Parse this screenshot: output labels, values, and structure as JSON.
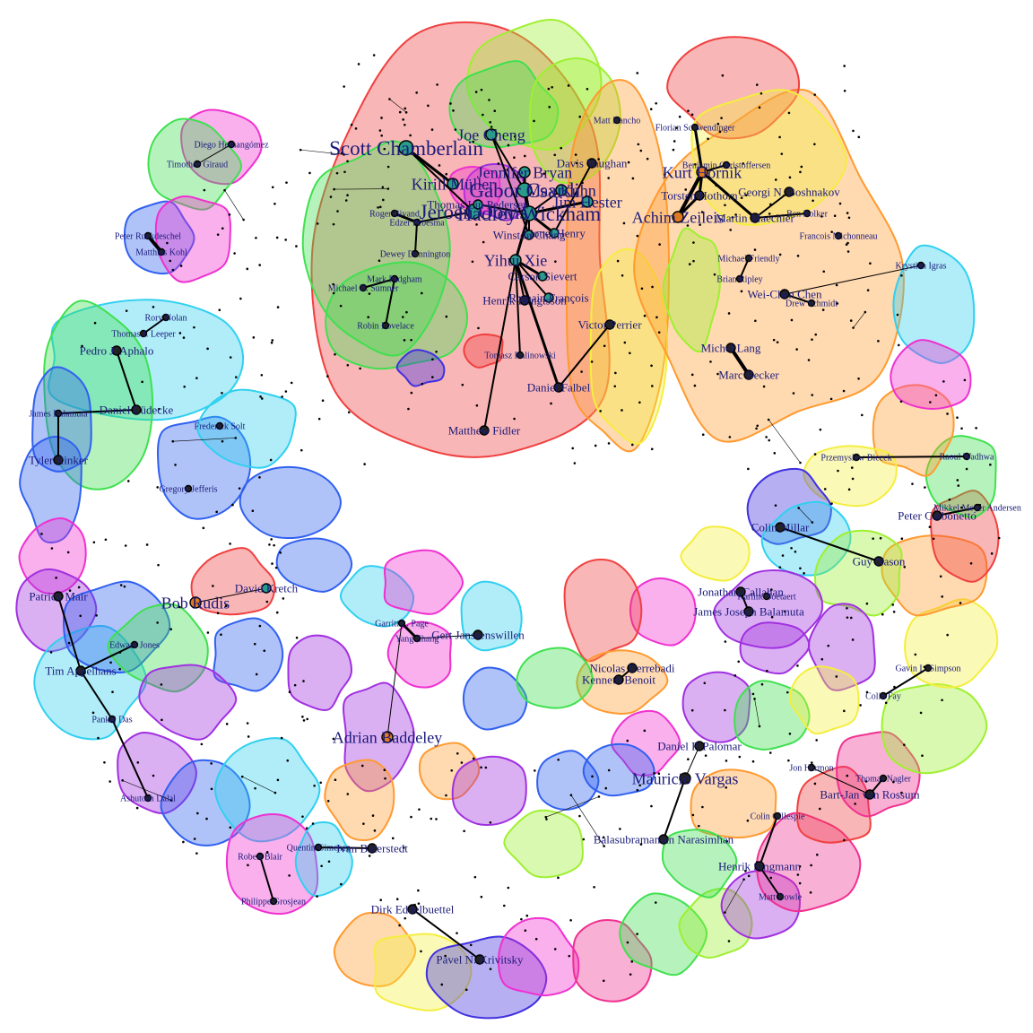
{
  "colors": {
    "red": "#f04040",
    "orange": "#ff9a30",
    "yellow": "#f4ee40",
    "lime": "#9ef030",
    "green": "#40e050",
    "teal": "#30e0c0",
    "cyan": "#30d0f0",
    "blue": "#3060f0",
    "indigo": "#4030e0",
    "violet": "#a030e0",
    "magenta": "#f030d0",
    "pink": "#f03090",
    "hub_teal": "#2a9a8a",
    "hub_orange": "#e07a20"
  },
  "groups": [
    {
      "name": "top-red-cluster",
      "color": "red"
    },
    {
      "name": "top-green-cluster",
      "color": "green"
    },
    {
      "name": "top-lime-cluster",
      "color": "lime"
    },
    {
      "name": "top-orange-cluster",
      "color": "orange"
    },
    {
      "name": "right-orange-cluster",
      "color": "orange"
    },
    {
      "name": "right-yellow-cluster",
      "color": "yellow"
    },
    {
      "name": "right-red-cluster",
      "color": "red"
    }
  ],
  "people": [
    {
      "id": "scott-chamberlain",
      "label": "Scott Chamberlain",
      "size": "xl",
      "hub": "teal"
    },
    {
      "id": "gabor-csardi",
      "label": "Gabor Csardi",
      "size": "xl",
      "hub": "teal"
    },
    {
      "id": "hadley-wickham",
      "label": "Hadley Wickham",
      "size": "xl",
      "hub": "teal"
    },
    {
      "id": "jeroen-ooms",
      "label": "Jeroen Ooms",
      "size": "xl",
      "hub": "teal"
    },
    {
      "id": "yihui-xie",
      "label": "Yihui Xie",
      "size": "l",
      "hub": "teal"
    },
    {
      "id": "jennifer-bryan",
      "label": "Jennifer Bryan",
      "size": "l",
      "hub": "teal"
    },
    {
      "id": "joe-cheng",
      "label": "Joe Cheng",
      "size": "l",
      "hub": "teal"
    },
    {
      "id": "kirill-muller",
      "label": "Kirill Müller",
      "size": "l",
      "hub": "teal"
    },
    {
      "id": "max-kuhn",
      "label": "Max Kuhn",
      "size": "l",
      "hub": "teal"
    },
    {
      "id": "jim-hester",
      "label": "Jim Hester",
      "size": "l",
      "hub": "teal"
    },
    {
      "id": "thomas-lin-pedersen",
      "label": "Thomas Lin Pedersen",
      "size": "m",
      "hub": "teal"
    },
    {
      "id": "winston-chang",
      "label": "Winston Chang",
      "size": "m",
      "hub": "teal"
    },
    {
      "id": "lionel-henry",
      "label": "Lionel Henry",
      "size": "m",
      "hub": "teal"
    },
    {
      "id": "romain-francois",
      "label": "Romain François",
      "size": "m",
      "hub": "teal"
    },
    {
      "id": "carson-sievert",
      "label": "Carson Sievert",
      "size": "m",
      "hub": "teal"
    },
    {
      "id": "davis-vaughan",
      "label": "Davis Vaughan",
      "size": "m",
      "hub": "none"
    },
    {
      "id": "kurt-hornik",
      "label": "Kurt Hornik",
      "size": "l",
      "hub": "orange"
    },
    {
      "id": "achim-zeileis",
      "label": "Achim Zeileis",
      "size": "l",
      "hub": "orange"
    },
    {
      "id": "martin-maechler",
      "label": "Martin Maechler",
      "size": "m",
      "hub": "none"
    },
    {
      "id": "georgi-boshnakov",
      "label": "Georgi N. Boshnakov",
      "size": "m",
      "hub": "none"
    },
    {
      "id": "torsten-hothorn",
      "label": "Torsten Hothorn",
      "size": "m",
      "hub": "none"
    },
    {
      "id": "michel-lang",
      "label": "Michel Lang",
      "size": "m",
      "hub": "none"
    },
    {
      "id": "marc-becker",
      "label": "Marc Becker",
      "size": "m",
      "hub": "none"
    },
    {
      "id": "wei-chen",
      "label": "Wei-Chen Chen",
      "size": "m",
      "hub": "none"
    },
    {
      "id": "drew-schmidt",
      "label": "Drew Schmidt",
      "size": "s",
      "hub": "none"
    },
    {
      "id": "brian-ripley",
      "label": "Brian Ripley",
      "size": "s",
      "hub": "none"
    },
    {
      "id": "victor-perrier",
      "label": "Victor Perrier",
      "size": "m",
      "hub": "none"
    },
    {
      "id": "daniel-falbel",
      "label": "Daniel Falbel",
      "size": "m",
      "hub": "none"
    },
    {
      "id": "matthew-fidler",
      "label": "Matthew Fidler",
      "size": "m",
      "hub": "none"
    },
    {
      "id": "tomasz-kalinowski",
      "label": "Tomasz Kalinowski",
      "size": "s",
      "hub": "none"
    },
    {
      "id": "henrik-bengtsson",
      "label": "Henrik Bengtsson",
      "size": "m",
      "hub": "none"
    },
    {
      "id": "michael-sumner",
      "label": "Michael D. Sumner",
      "size": "s",
      "hub": "none"
    },
    {
      "id": "robin-lovelace",
      "label": "Robin Lovelace",
      "size": "s",
      "hub": "none"
    },
    {
      "id": "roger-bivand",
      "label": "Roger Bivand",
      "size": "s",
      "hub": "none"
    },
    {
      "id": "dewey-dunnington",
      "label": "Dewey Dunnington",
      "size": "s",
      "hub": "none"
    },
    {
      "id": "edzer-pebesma",
      "label": "Edzer Pebesma",
      "size": "s",
      "hub": "none"
    },
    {
      "id": "mark-padgham",
      "label": "Mark Padgham",
      "size": "s",
      "hub": "none"
    },
    {
      "id": "matt-dancho",
      "label": "Matt Dancho",
      "size": "s",
      "hub": "none"
    },
    {
      "id": "florian-schwendinger",
      "label": "Florian Schwendinger",
      "size": "s",
      "hub": "none"
    },
    {
      "id": "benjamin-christoffersen",
      "label": "Benjamin Christoffersen",
      "size": "s",
      "hub": "none"
    },
    {
      "id": "michael-friendly",
      "label": "Michael Friendly",
      "size": "s",
      "hub": "none"
    },
    {
      "id": "ben-bolker",
      "label": "Ben Bolker",
      "size": "s",
      "hub": "none"
    },
    {
      "id": "francois-michonneau",
      "label": "Francois Michonneau",
      "size": "s",
      "hub": "none"
    },
    {
      "id": "diego-hernangomez",
      "label": "Diego Hernangómez",
      "size": "s",
      "hub": "none"
    },
    {
      "id": "timothee-giraud",
      "label": "Timothée Giraud",
      "size": "s",
      "hub": "none"
    },
    {
      "id": "peter-ruckdeschel",
      "label": "Peter Ruckdeschel",
      "size": "s",
      "hub": "none"
    },
    {
      "id": "matthias-kohl",
      "label": "Matthias Kohl",
      "size": "s",
      "hub": "none"
    },
    {
      "id": "rory-nolan",
      "label": "Rory Nolan",
      "size": "s",
      "hub": "none"
    },
    {
      "id": "thomas-leeper",
      "label": "Thomas J. Leeper",
      "size": "s",
      "hub": "none"
    },
    {
      "id": "pedro-aphalo",
      "label": "Pedro J. Aphalo",
      "size": "m",
      "hub": "none"
    },
    {
      "id": "daniel-ludecke",
      "label": "Daniel Lüdecke",
      "size": "m",
      "hub": "none"
    },
    {
      "id": "james-balamuta",
      "label": "James Balamuta",
      "size": "s",
      "hub": "none"
    },
    {
      "id": "tyler-rinker",
      "label": "Tyler Rinker",
      "size": "m",
      "hub": "none"
    },
    {
      "id": "gregor-jefferis",
      "label": "Gregory Jefferis",
      "size": "s",
      "hub": "none"
    },
    {
      "id": "frederick-solt",
      "label": "Frederick Solt",
      "size": "s",
      "hub": "none"
    },
    {
      "id": "bob-rudis",
      "label": "Bob Rudis",
      "size": "l",
      "hub": "orange"
    },
    {
      "id": "david-kretch",
      "label": "David Kretch",
      "size": "m",
      "hub": "teal"
    },
    {
      "id": "patrick-mair",
      "label": "Patrick Mair",
      "size": "m",
      "hub": "none"
    },
    {
      "id": "tim-appelhans",
      "label": "Tim Appelhans",
      "size": "m",
      "hub": "none"
    },
    {
      "id": "edward-jones",
      "label": "Edward Jones",
      "size": "s",
      "hub": "none"
    },
    {
      "id": "pankaj-das",
      "label": "Pankaj Das",
      "size": "s",
      "hub": "none"
    },
    {
      "id": "adrian-baddeley",
      "label": "Adrian Baddeley",
      "size": "l",
      "hub": "orange"
    },
    {
      "id": "gert-janssenswillen",
      "label": "Gert Janssenswillen",
      "size": "m",
      "hub": "none"
    },
    {
      "id": "garrick-page",
      "label": "Garritt L. Page",
      "size": "s",
      "hub": "none"
    },
    {
      "id": "yang-zhang",
      "label": "Yang Zhang",
      "size": "s",
      "hub": "none"
    },
    {
      "id": "quentin-gimenez",
      "label": "Quentin Gimenez",
      "size": "s",
      "hub": "none"
    },
    {
      "id": "ivan-biderstedt",
      "label": "Ivan Biderstedt",
      "size": "m",
      "hub": "none"
    },
    {
      "id": "nicolas-derrebadi",
      "label": "Nicolas Derrebadi",
      "size": "m",
      "hub": "none"
    },
    {
      "id": "kenneth-benoit",
      "label": "Kenneth Benoit",
      "size": "m",
      "hub": "none"
    },
    {
      "id": "mauricio-vargas",
      "label": "Mauricio Vargas",
      "size": "l",
      "hub": "none"
    },
    {
      "id": "balasubramanian-narasimhan",
      "label": "Balasubramanian Narasimhan",
      "size": "m",
      "hub": "none"
    },
    {
      "id": "daniel-palomar",
      "label": "Daniel P. Palomar",
      "size": "m",
      "hub": "none"
    },
    {
      "id": "james-joseph-balamuta",
      "label": "James Joseph Balamuta",
      "size": "m",
      "hub": "none"
    },
    {
      "id": "jonathan-callahan",
      "label": "Jonathan Callahan",
      "size": "m",
      "hub": "none"
    },
    {
      "id": "karline-soetaert",
      "label": "Karline Soetaert",
      "size": "s",
      "hub": "none"
    },
    {
      "id": "colin-fay",
      "label": "Colin Fay",
      "size": "s",
      "hub": "none"
    },
    {
      "id": "gavin-simpson",
      "label": "Gavin L. Simpson",
      "size": "s",
      "hub": "none"
    },
    {
      "id": "bart-jan-van-rossum",
      "label": "Bart-Jan van Rossum",
      "size": "m",
      "hub": "none"
    },
    {
      "id": "henrik-singmann",
      "label": "Henrik Singmann",
      "size": "m",
      "hub": "none"
    },
    {
      "id": "colin-gillespie",
      "label": "Colin Gillespie",
      "size": "s",
      "hub": "none"
    },
    {
      "id": "matt-dowle",
      "label": "Matt Dowle",
      "size": "s",
      "hub": "none"
    },
    {
      "id": "guy-nason",
      "label": "Guy Nason",
      "size": "m",
      "hub": "none"
    },
    {
      "id": "colin-millar",
      "label": "Colin Millar",
      "size": "m",
      "hub": "none"
    },
    {
      "id": "pieter-carbonetto",
      "label": "Peter Carbonetto",
      "size": "m",
      "hub": "none"
    },
    {
      "id": "mikkel-andersen",
      "label": "Mikkel Meyer Andersen",
      "size": "s",
      "hub": "none"
    },
    {
      "id": "raoul-wadhwa",
      "label": "Raoul Wadhwa",
      "size": "s",
      "hub": "none"
    },
    {
      "id": "przemyslaw-biecek",
      "label": "Przemysław Biecek",
      "size": "s",
      "hub": "none"
    },
    {
      "id": "kristian-jaras",
      "label": "Krystian Igras",
      "size": "s",
      "hub": "none"
    },
    {
      "id": "jon-harmon",
      "label": "Jon Harmon",
      "size": "s",
      "hub": "none"
    },
    {
      "id": "thomas-nagler",
      "label": "Thomas Nagler",
      "size": "s",
      "hub": "none"
    },
    {
      "id": "pavel-krivitsky",
      "label": "Pavel N. Krivitsky",
      "size": "m",
      "hub": "none"
    },
    {
      "id": "dirk-eddelbuettel",
      "label": "Dirk Eddelbuettel",
      "size": "m",
      "hub": "none"
    },
    {
      "id": "philippe-grosjean",
      "label": "Philippe Grosjean",
      "size": "s",
      "hub": "none"
    },
    {
      "id": "robert-blair",
      "label": "Robert Blair",
      "size": "s",
      "hub": "none"
    },
    {
      "id": "ashutosh-dalal",
      "label": "Ashutosh Dalal",
      "size": "s",
      "hub": "none"
    }
  ]
}
